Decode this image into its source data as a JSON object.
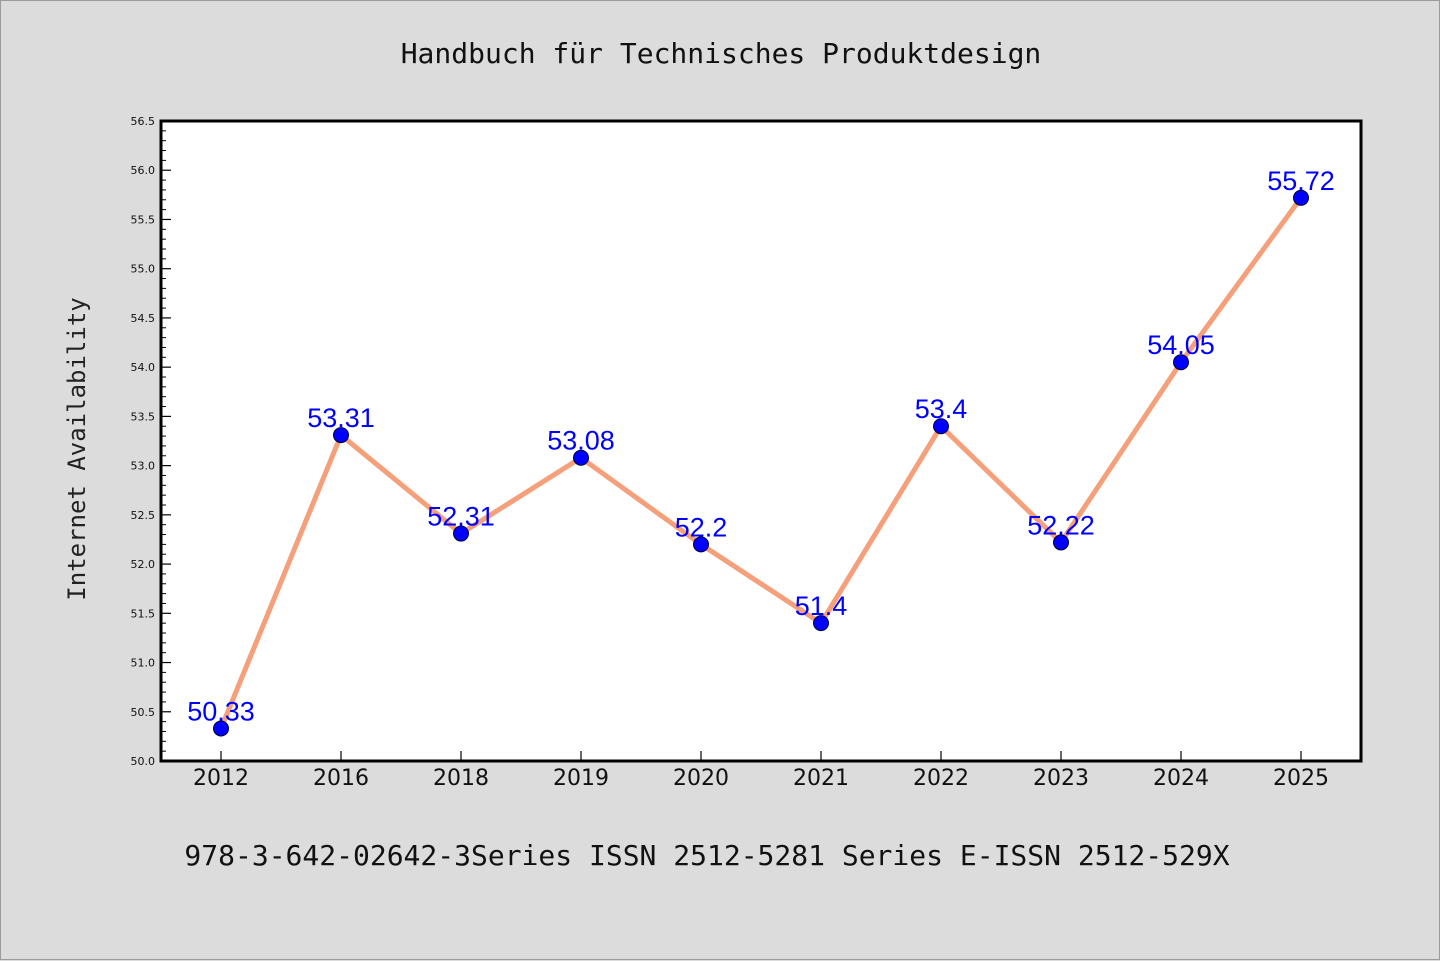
{
  "page": {
    "footer": "978-3-642-02642-3Series ISSN 2512-5281 Series E-ISSN 2512-529X"
  },
  "colors": {
    "background": "#dcdcdc",
    "plot_background": "#ffffff",
    "line": "#f5a07a",
    "marker": "#0000ff",
    "data_label": "#0000ff"
  },
  "chart_data": {
    "type": "line",
    "title": "Handbuch für Technisches Produktdesign",
    "xlabel": "",
    "ylabel": "Internet Availability",
    "categories": [
      "2012",
      "2016",
      "2018",
      "2019",
      "2020",
      "2021",
      "2022",
      "2023",
      "2024",
      "2025"
    ],
    "series": [
      {
        "values": [
          50.33,
          53.31,
          52.31,
          53.08,
          52.2,
          51.4,
          53.4,
          52.22,
          54.05,
          55.72
        ]
      }
    ],
    "data_labels": [
      "50.33",
      "53.31",
      "52.31",
      "53.08",
      "52.2",
      "51.4",
      "53.4",
      "52.22",
      "54.05",
      "55.72"
    ],
    "ylim": [
      50.0,
      56.5
    ],
    "yticks": [
      "50.0",
      "50.5",
      "51.0",
      "51.5",
      "52.0",
      "52.5",
      "53.0",
      "53.5",
      "54.0",
      "54.5",
      "55.0",
      "55.5",
      "56.0",
      "56.5"
    ],
    "grid": false,
    "legend": "none"
  }
}
